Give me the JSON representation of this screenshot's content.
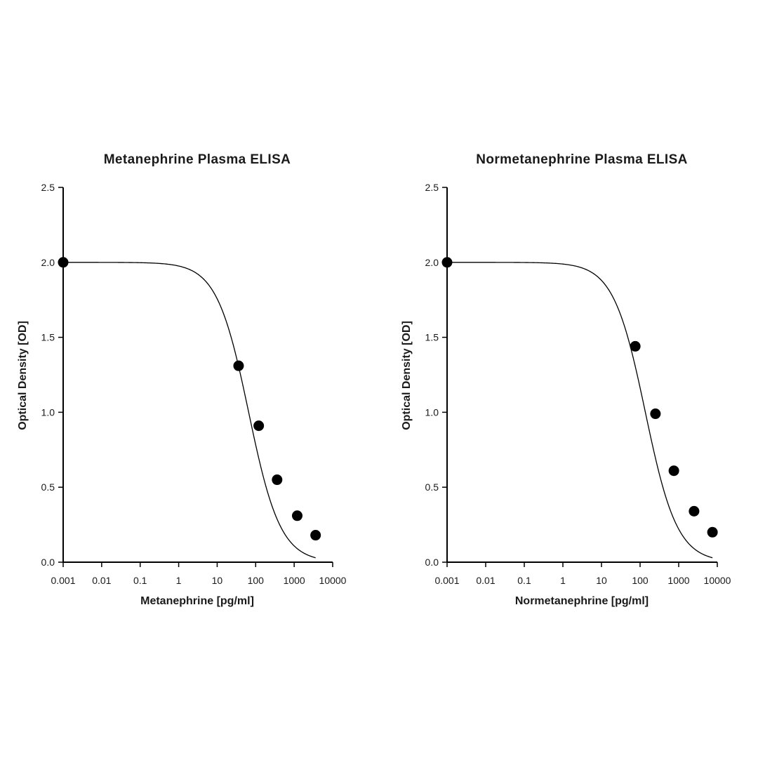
{
  "colors": {
    "ink": "#000000",
    "text": "#1a1a1a",
    "background": "#ffffff"
  },
  "chart_data": [
    {
      "type": "scatter",
      "title": "Metanephrine Plasma ELISA",
      "xlabel": "Metanephrine [pg/ml]",
      "ylabel": "Optical Density [OD]",
      "x_scale": "log",
      "xlim": [
        0.001,
        10000
      ],
      "ylim": [
        0,
        2.5
      ],
      "x_ticks": [
        "0.001",
        "0.01",
        "0.1",
        "1",
        "10",
        "100",
        "1000",
        "10000"
      ],
      "y_ticks": [
        "0.0",
        "0.5",
        "1.0",
        "1.5",
        "2.0",
        "2.5"
      ],
      "grid": false,
      "fit_curve": "4PL",
      "series": [
        {
          "x": [
            0.001,
            36,
            120,
            360,
            1200,
            3600
          ],
          "y": [
            2.0,
            1.31,
            0.91,
            0.55,
            0.31,
            0.18
          ]
        }
      ]
    },
    {
      "type": "scatter",
      "title": "Normetanephrine Plasma ELISA",
      "xlabel": "Normetanephrine [pg/ml]",
      "ylabel": "Optical Density [OD]",
      "x_scale": "log",
      "xlim": [
        0.001,
        10000
      ],
      "ylim": [
        0,
        2.5
      ],
      "x_ticks": [
        "0.001",
        "0.01",
        "0.1",
        "1",
        "10",
        "100",
        "1000",
        "10000"
      ],
      "y_ticks": [
        "0.0",
        "0.5",
        "1.0",
        "1.5",
        "2.0",
        "2.5"
      ],
      "grid": false,
      "fit_curve": "4PL",
      "series": [
        {
          "x": [
            0.001,
            75,
            250,
            750,
            2500,
            7500
          ],
          "y": [
            2.0,
            1.44,
            0.99,
            0.61,
            0.34,
            0.2
          ]
        }
      ]
    }
  ]
}
